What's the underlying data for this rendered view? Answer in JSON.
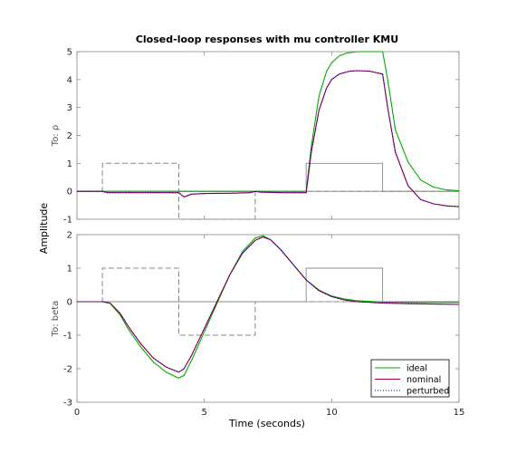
{
  "chart_data": {
    "type": "line",
    "title": "Closed-loop responses with mu controller KMU",
    "xlabel": "Time (seconds)",
    "ylabel": "Amplitude",
    "xlim": [
      0,
      15
    ],
    "xticks": [
      "0",
      "5",
      "10",
      "15"
    ],
    "legend": {
      "placement": "bottom-right",
      "entries": [
        {
          "label": "ideal",
          "color": "#00aa00",
          "style": "solid"
        },
        {
          "label": "nominal",
          "color": "#aa0033",
          "style": "solid"
        },
        {
          "label": "perturbed",
          "color": "#0000cc",
          "style": "dotted"
        }
      ]
    },
    "panels": [
      {
        "row_label": "To: ρ",
        "ylim": [
          -1,
          5
        ],
        "yticks": [
          "-1",
          "0",
          "1",
          "2",
          "3",
          "4",
          "5"
        ],
        "grid": false,
        "reference": {
          "dashed": {
            "x": [
              0,
              1,
              1,
              4,
              4,
              7,
              7,
              15
            ],
            "y": [
              0,
              0,
              1,
              1,
              -1,
              -1,
              0,
              0
            ]
          },
          "solid": {
            "x": [
              0,
              9,
              9,
              12,
              12,
              15
            ],
            "y": [
              0,
              0,
              1,
              1,
              0,
              0
            ]
          }
        },
        "series": [
          {
            "name": "ideal",
            "color": "#00aa00",
            "x": [
              0,
              1,
              2,
              3,
              4,
              5,
              6,
              7,
              8,
              9,
              9.2,
              9.5,
              9.8,
              10,
              10.3,
              10.6,
              11,
              11.5,
              12,
              12.2,
              12.5,
              13,
              13.5,
              14,
              14.5,
              15
            ],
            "y": [
              0,
              0,
              0,
              0,
              0,
              0,
              0,
              0,
              0,
              0,
              1.6,
              3.4,
              4.3,
              4.6,
              4.85,
              4.95,
              5,
              5,
              5,
              4.0,
              2.2,
              1.05,
              0.4,
              0.15,
              0.05,
              0.02
            ]
          },
          {
            "name": "nominal",
            "color": "#aa0033",
            "x": [
              0,
              1,
              1.2,
              2,
              3,
              4,
              4.2,
              4.5,
              5,
              6,
              6.8,
              7,
              7.2,
              8,
              9,
              9.2,
              9.5,
              9.8,
              10,
              10.3,
              10.7,
              11,
              11.5,
              12,
              12.2,
              12.5,
              13,
              13.5,
              14,
              14.5,
              15
            ],
            "y": [
              0,
              0,
              -0.05,
              -0.05,
              -0.05,
              -0.05,
              -0.2,
              -0.1,
              -0.08,
              -0.07,
              -0.05,
              0,
              -0.03,
              -0.05,
              -0.05,
              1.4,
              2.9,
              3.7,
              4.0,
              4.2,
              4.3,
              4.32,
              4.3,
              4.2,
              3.0,
              1.4,
              0.2,
              -0.3,
              -0.45,
              -0.52,
              -0.55
            ]
          },
          {
            "name": "perturbed",
            "color": "#0000cc",
            "x": [
              0,
              1,
              1.2,
              2,
              3,
              4,
              4.2,
              4.5,
              5,
              6,
              6.8,
              7,
              7.2,
              8,
              9,
              9.2,
              9.5,
              9.8,
              10,
              10.3,
              10.7,
              11,
              11.5,
              12,
              12.2,
              12.5,
              13,
              13.5,
              14,
              14.5,
              15
            ],
            "y": [
              0,
              0,
              -0.05,
              -0.05,
              -0.05,
              -0.05,
              -0.2,
              -0.1,
              -0.08,
              -0.07,
              -0.05,
              0,
              -0.03,
              -0.05,
              -0.05,
              1.4,
              2.9,
              3.7,
              4.0,
              4.2,
              4.3,
              4.32,
              4.3,
              4.2,
              3.0,
              1.4,
              0.2,
              -0.3,
              -0.45,
              -0.52,
              -0.55
            ]
          }
        ]
      },
      {
        "row_label": "To: beta",
        "ylim": [
          -3,
          2
        ],
        "yticks": [
          "-3",
          "-2",
          "-1",
          "0",
          "1",
          "2"
        ],
        "grid": false,
        "reference": {
          "dashed": {
            "x": [
              0,
              1,
              1,
              4,
              4,
              7,
              7,
              15
            ],
            "y": [
              0,
              0,
              1,
              1,
              -1,
              -1,
              0,
              0
            ]
          },
          "solid": {
            "x": [
              0,
              9,
              9,
              12,
              12,
              15
            ],
            "y": [
              0,
              0,
              1,
              1,
              0,
              0
            ]
          }
        },
        "series": [
          {
            "name": "ideal",
            "color": "#00aa00",
            "x": [
              0,
              1,
              1.3,
              1.7,
              2,
              2.5,
              3,
              3.5,
              4,
              4.2,
              4.5,
              5,
              5.5,
              6,
              6.5,
              7,
              7.3,
              7.6,
              8,
              8.5,
              9,
              9.5,
              10,
              10.5,
              11,
              12,
              13,
              14,
              15
            ],
            "y": [
              0,
              0,
              -0.05,
              -0.4,
              -0.8,
              -1.35,
              -1.8,
              -2.1,
              -2.28,
              -2.2,
              -1.75,
              -0.9,
              -0.05,
              0.8,
              1.5,
              1.9,
              1.97,
              1.85,
              1.55,
              1.1,
              0.65,
              0.35,
              0.17,
              0.08,
              0.03,
              -0.01,
              -0.02,
              -0.02,
              -0.02
            ]
          },
          {
            "name": "nominal",
            "color": "#aa0033",
            "x": [
              0,
              1,
              1.3,
              1.7,
              2,
              2.5,
              3,
              3.5,
              4,
              4.2,
              4.5,
              5,
              5.5,
              6,
              6.5,
              7,
              7.3,
              7.6,
              8,
              8.5,
              9,
              9.5,
              10,
              10.5,
              11,
              12,
              13,
              14,
              15
            ],
            "y": [
              0,
              0,
              -0.04,
              -0.35,
              -0.72,
              -1.25,
              -1.68,
              -1.95,
              -2.1,
              -2.0,
              -1.6,
              -0.8,
              0.0,
              0.8,
              1.45,
              1.83,
              1.93,
              1.85,
              1.55,
              1.1,
              0.65,
              0.33,
              0.15,
              0.05,
              0.0,
              -0.04,
              -0.06,
              -0.07,
              -0.08
            ]
          },
          {
            "name": "perturbed",
            "color": "#0000cc",
            "x": [
              0,
              1,
              1.3,
              1.7,
              2,
              2.5,
              3,
              3.5,
              4,
              4.2,
              4.5,
              5,
              5.5,
              6,
              6.5,
              7,
              7.3,
              7.6,
              8,
              8.5,
              9,
              9.5,
              10,
              10.5,
              11,
              12,
              13,
              14,
              15
            ],
            "y": [
              0,
              0,
              -0.04,
              -0.35,
              -0.72,
              -1.25,
              -1.68,
              -1.95,
              -2.1,
              -2.0,
              -1.6,
              -0.8,
              0.0,
              0.8,
              1.45,
              1.83,
              1.93,
              1.85,
              1.55,
              1.1,
              0.65,
              0.33,
              0.15,
              0.05,
              0.0,
              -0.04,
              -0.06,
              -0.07,
              -0.08
            ]
          }
        ]
      }
    ]
  }
}
